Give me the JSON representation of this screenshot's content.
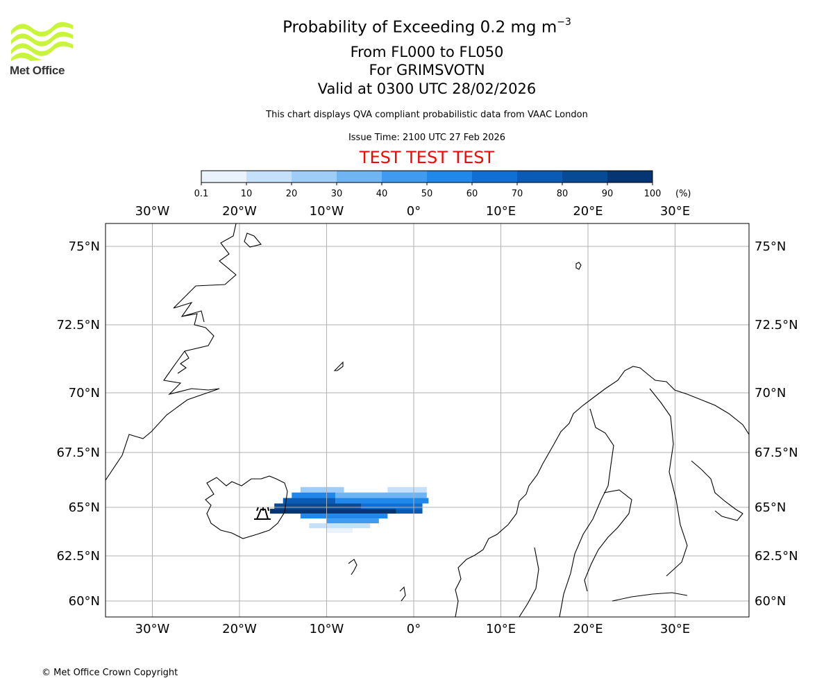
{
  "header": {
    "title_main": "Probability of Exceeding 0.2 mg m",
    "title_superscript": "−3",
    "flight_levels": "From FL000 to FL050",
    "volcano": "For GRIMSVOTN",
    "valid_time": "Valid at 0300 UTC 28/02/2026",
    "description": "This chart displays QVA compliant probabilistic data from VAAC London",
    "issue_time": "Issue Time: 2100 UTC 27 Feb 2026",
    "test_banner": "TEST TEST TEST"
  },
  "logo": {
    "text": "Met Office",
    "icon": "met-office-wave-logo",
    "color": "#c8f53c"
  },
  "colorbar": {
    "ticks": [
      "0.1",
      "10",
      "20",
      "30",
      "40",
      "50",
      "60",
      "70",
      "80",
      "90",
      "100"
    ],
    "unit": "(%)",
    "colors": [
      "#eaf3fd",
      "#c5e0fa",
      "#9ecdf8",
      "#6fb5f4",
      "#3e9bf0",
      "#1f88ea",
      "#0f6fd4",
      "#0a5bb5",
      "#074a95",
      "#053673"
    ]
  },
  "map": {
    "lon_labels": [
      "30°W",
      "20°W",
      "10°W",
      "0°",
      "10°E",
      "20°E",
      "30°E"
    ],
    "lat_labels": [
      "75°N",
      "72.5°N",
      "70°N",
      "67.5°N",
      "65°N",
      "62.5°N",
      "60°N"
    ],
    "volcano_marker": "volcano-icon",
    "gridline_color": "#b0b0b0"
  },
  "chart_data": {
    "type": "heatmap",
    "title": "Probability of Exceeding 0.2 mg m−3",
    "variable": "probability of exceedance (%)",
    "levels": [
      0.1,
      10,
      20,
      30,
      40,
      50,
      60,
      70,
      80,
      90,
      100
    ],
    "lon_range": [
      -35,
      38
    ],
    "lat_range": [
      59.2,
      76
    ],
    "gridlines_lon": [
      -30,
      -20,
      -10,
      0,
      10,
      20,
      30
    ],
    "gridlines_lat": [
      60,
      62.5,
      65,
      67.5,
      70,
      72.5,
      75
    ],
    "volcano_location": {
      "lon": -17.3,
      "lat": 64.42
    },
    "plume_rows": [
      {
        "lat": 65.8,
        "lon_start": -13,
        "lon_end": -8,
        "value": 20
      },
      {
        "lat": 65.8,
        "lon_start": -3,
        "lon_end": 1.5,
        "value": 10
      },
      {
        "lat": 65.55,
        "lon_start": -14,
        "lon_end": -9,
        "value": 50
      },
      {
        "lat": 65.55,
        "lon_start": -9,
        "lon_end": 1.5,
        "value": 30
      },
      {
        "lat": 65.3,
        "lon_start": -15,
        "lon_end": -9,
        "value": 70
      },
      {
        "lat": 65.3,
        "lon_start": -9,
        "lon_end": 1.7,
        "value": 50
      },
      {
        "lat": 65.05,
        "lon_start": -16,
        "lon_end": -6,
        "value": 80
      },
      {
        "lat": 65.05,
        "lon_start": -6,
        "lon_end": 1.0,
        "value": 60
      },
      {
        "lat": 64.8,
        "lon_start": -16.5,
        "lon_end": -2,
        "value": 90
      },
      {
        "lat": 64.8,
        "lon_start": -2,
        "lon_end": 1.0,
        "value": 70
      },
      {
        "lat": 64.55,
        "lon_start": -13,
        "lon_end": -3,
        "value": 50
      },
      {
        "lat": 64.3,
        "lon_start": -10,
        "lon_end": -4,
        "value": 40
      },
      {
        "lat": 64.05,
        "lon_start": -12,
        "lon_end": -5,
        "value": 10
      },
      {
        "lat": 63.8,
        "lon_start": -10,
        "lon_end": -7,
        "value": 0.1
      }
    ]
  },
  "footer": {
    "copyright": "© Met Office Crown Copyright"
  }
}
